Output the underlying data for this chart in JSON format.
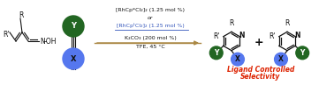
{
  "fig_width": 3.78,
  "fig_height": 0.97,
  "dpi": 100,
  "bg_color": "#ffffff",
  "blue_circle_color": "#5577ee",
  "green_circle_color": "#226622",
  "red_color": "#dd2200",
  "condition_color_blue": "#3355bb",
  "reagent1": "[RhCp*Cl₂]₂ (1.25 mol %)",
  "reagent_or": "or",
  "reagent2": "[RhCpᵗCl₂]₂ (1.25 mol %)",
  "reagent3": "K₂CO₃ (200 mol %)",
  "reagent4": "TFE, 45 °C",
  "label_line1": "Ligand Controlled",
  "label_line2": "Selectivity"
}
